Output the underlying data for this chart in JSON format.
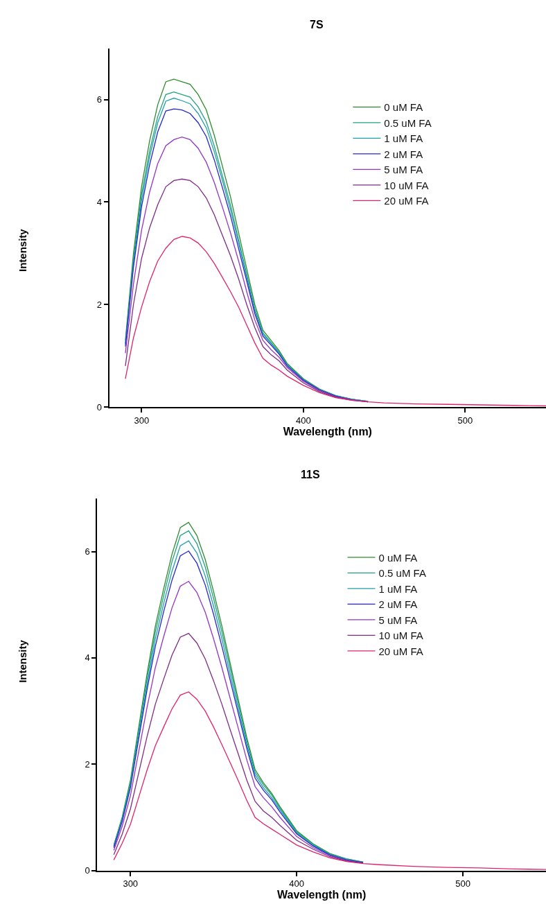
{
  "chart_data": [
    {
      "type": "line",
      "title": "7S",
      "xlabel": "Wavelength (nm)",
      "ylabel": "Intensity",
      "xlim": [
        280,
        550
      ],
      "xticks": [
        300,
        400,
        500
      ],
      "ylim": [
        0,
        7
      ],
      "yticks": [
        0,
        2,
        4,
        6
      ],
      "legend": "top right",
      "marker": "none",
      "line_style": "solid",
      "x": [
        290,
        295,
        300,
        305,
        310,
        315,
        320,
        325,
        330,
        335,
        340,
        345,
        350,
        355,
        360,
        365,
        370,
        375,
        380,
        385,
        390,
        400,
        410,
        420,
        430,
        440,
        450,
        470,
        490,
        510,
        530,
        550
      ],
      "series": [
        {
          "name": "0 uM FA",
          "color": "#2e8b2e",
          "values": [
            1.3,
            3.0,
            4.3,
            5.2,
            5.9,
            6.35,
            6.4,
            6.35,
            6.3,
            6.1,
            5.8,
            5.3,
            4.7,
            4.1,
            3.4,
            2.7,
            2.0,
            1.5,
            1.3,
            1.1,
            0.85,
            0.55,
            0.35,
            0.22,
            0.15,
            0.11,
            null,
            null,
            null,
            null,
            null,
            null
          ]
        },
        {
          "name": "0.5 uM FA",
          "color": "#1fa37f",
          "values": [
            1.25,
            2.9,
            4.15,
            5.0,
            5.67,
            6.1,
            6.15,
            6.1,
            6.05,
            5.86,
            5.57,
            5.09,
            4.51,
            3.94,
            3.26,
            2.59,
            1.92,
            1.45,
            1.26,
            1.07,
            0.83,
            0.54,
            0.34,
            0.22,
            0.15,
            0.11,
            null,
            null,
            null,
            null,
            null,
            null
          ]
        },
        {
          "name": "1 uM FA",
          "color": "#1f9fab",
          "values": [
            1.22,
            2.82,
            4.04,
            4.89,
            5.55,
            5.97,
            6.03,
            5.98,
            5.92,
            5.73,
            5.45,
            4.98,
            4.42,
            3.85,
            3.2,
            2.54,
            1.88,
            1.42,
            1.24,
            1.05,
            0.82,
            0.53,
            0.34,
            0.21,
            0.15,
            0.11,
            null,
            null,
            null,
            null,
            null,
            null
          ]
        },
        {
          "name": "2 uM FA",
          "color": "#2424d0",
          "values": [
            1.18,
            2.73,
            3.91,
            4.73,
            5.37,
            5.78,
            5.82,
            5.8,
            5.73,
            5.55,
            5.28,
            4.82,
            4.28,
            3.73,
            3.09,
            2.46,
            1.82,
            1.38,
            1.21,
            1.03,
            0.8,
            0.52,
            0.33,
            0.21,
            0.14,
            0.1,
            null,
            null,
            null,
            null,
            null,
            null
          ]
        },
        {
          "name": "5 uM FA",
          "color": "#9433c4",
          "values": [
            1.05,
            2.4,
            3.45,
            4.2,
            4.75,
            5.1,
            5.22,
            5.27,
            5.22,
            5.05,
            4.78,
            4.38,
            3.9,
            3.4,
            2.85,
            2.25,
            1.7,
            1.3,
            1.12,
            0.97,
            0.77,
            0.5,
            0.32,
            0.2,
            0.14,
            0.1,
            null,
            null,
            null,
            null,
            null,
            null
          ]
        },
        {
          "name": "10 uM FA",
          "color": "#7f2a86",
          "values": [
            0.8,
            2.0,
            2.9,
            3.5,
            3.95,
            4.3,
            4.42,
            4.45,
            4.42,
            4.3,
            4.08,
            3.75,
            3.35,
            2.95,
            2.5,
            2.0,
            1.55,
            1.18,
            1.02,
            0.9,
            0.72,
            0.47,
            0.3,
            0.19,
            0.13,
            0.1,
            null,
            null,
            null,
            null,
            null,
            null
          ]
        },
        {
          "name": "20 uM FA",
          "color": "#e0226c",
          "values": [
            0.55,
            1.35,
            1.95,
            2.45,
            2.85,
            3.1,
            3.27,
            3.33,
            3.3,
            3.2,
            3.03,
            2.8,
            2.53,
            2.25,
            1.95,
            1.6,
            1.25,
            0.95,
            0.82,
            0.72,
            0.6,
            0.42,
            0.28,
            0.18,
            0.13,
            0.1,
            0.08,
            0.06,
            0.05,
            0.04,
            0.03,
            0.02
          ]
        }
      ]
    },
    {
      "type": "line",
      "title": "11S",
      "xlabel": "Wavelength (nm)",
      "ylabel": "Intensity",
      "xlim": [
        280,
        550
      ],
      "xticks": [
        300,
        400,
        500
      ],
      "ylim": [
        0,
        7
      ],
      "yticks": [
        0,
        2,
        4,
        6
      ],
      "legend": "top right",
      "marker": "none",
      "line_style": "solid",
      "x": [
        290,
        295,
        300,
        305,
        310,
        315,
        320,
        325,
        330,
        335,
        340,
        345,
        350,
        355,
        360,
        365,
        370,
        375,
        380,
        385,
        390,
        400,
        410,
        420,
        430,
        440,
        450,
        470,
        490,
        510,
        530,
        550
      ],
      "series": [
        {
          "name": "0 uM FA",
          "color": "#2e8b2e",
          "values": [
            0.48,
            1.0,
            1.7,
            2.7,
            3.7,
            4.6,
            5.3,
            5.95,
            6.45,
            6.55,
            6.3,
            5.85,
            5.25,
            4.6,
            3.9,
            3.2,
            2.5,
            1.9,
            1.65,
            1.45,
            1.2,
            0.75,
            0.5,
            0.32,
            0.22,
            0.16,
            null,
            null,
            null,
            null,
            null,
            null
          ]
        },
        {
          "name": "0.5 uM FA",
          "color": "#1fa37f",
          "values": [
            0.47,
            0.98,
            1.66,
            2.64,
            3.61,
            4.49,
            5.17,
            5.81,
            6.3,
            6.39,
            6.15,
            5.71,
            5.12,
            4.49,
            3.81,
            3.12,
            2.44,
            1.85,
            1.61,
            1.42,
            1.17,
            0.73,
            0.49,
            0.31,
            0.22,
            0.16,
            null,
            null,
            null,
            null,
            null,
            null
          ]
        },
        {
          "name": "1 uM FA",
          "color": "#1f9fab",
          "values": [
            0.45,
            0.95,
            1.61,
            2.56,
            3.5,
            4.36,
            5.02,
            5.63,
            6.11,
            6.2,
            5.97,
            5.54,
            4.97,
            4.36,
            3.69,
            3.03,
            2.37,
            1.8,
            1.56,
            1.37,
            1.14,
            0.71,
            0.47,
            0.3,
            0.21,
            0.15,
            null,
            null,
            null,
            null,
            null,
            null
          ]
        },
        {
          "name": "2 uM FA",
          "color": "#2424d0",
          "values": [
            0.43,
            0.92,
            1.56,
            2.48,
            3.4,
            4.22,
            4.87,
            5.46,
            5.92,
            6.01,
            5.78,
            5.37,
            4.82,
            4.22,
            3.58,
            2.94,
            2.3,
            1.74,
            1.51,
            1.33,
            1.1,
            0.69,
            0.46,
            0.29,
            0.2,
            0.15,
            null,
            null,
            null,
            null,
            null,
            null
          ]
        },
        {
          "name": "5 uM FA",
          "color": "#9433c4",
          "values": [
            0.38,
            0.83,
            1.41,
            2.24,
            3.07,
            3.82,
            4.4,
            4.94,
            5.35,
            5.44,
            5.23,
            4.86,
            4.36,
            3.82,
            3.24,
            2.66,
            2.08,
            1.58,
            1.37,
            1.2,
            1.0,
            0.64,
            0.43,
            0.28,
            0.19,
            0.14,
            null,
            null,
            null,
            null,
            null,
            null
          ]
        },
        {
          "name": "10 uM FA",
          "color": "#7f2a86",
          "values": [
            0.3,
            0.68,
            1.16,
            1.84,
            2.52,
            3.13,
            3.6,
            4.05,
            4.39,
            4.46,
            4.28,
            3.98,
            3.57,
            3.13,
            2.65,
            2.18,
            1.7,
            1.3,
            1.12,
            1.0,
            0.85,
            0.57,
            0.4,
            0.26,
            0.18,
            0.14,
            null,
            null,
            null,
            null,
            null,
            null
          ]
        },
        {
          "name": "20 uM FA",
          "color": "#e0226c",
          "values": [
            0.2,
            0.51,
            0.87,
            1.38,
            1.89,
            2.35,
            2.7,
            3.04,
            3.3,
            3.36,
            3.22,
            3.0,
            2.7,
            2.37,
            2.03,
            1.68,
            1.32,
            1.0,
            0.88,
            0.78,
            0.68,
            0.48,
            0.35,
            0.24,
            0.17,
            0.13,
            0.11,
            0.08,
            0.06,
            0.05,
            0.03,
            0.02
          ]
        }
      ]
    }
  ]
}
